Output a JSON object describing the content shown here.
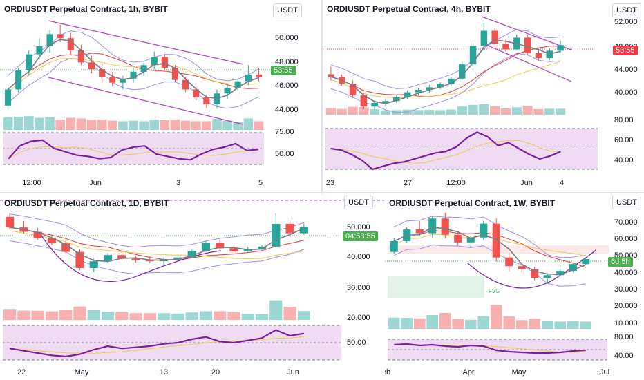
{
  "colors": {
    "up": "#26a69a",
    "down": "#ef5350",
    "ma": "#787b86",
    "bb": "#9c8df0",
    "rsi": "#7b1fa2",
    "rsiBand": "#e1bee7",
    "channel": "#b23fbf",
    "fib": "#f2c94c",
    "ema": "#e53935",
    "pricePos": "#4caf50",
    "priceNeg": "#f23645"
  },
  "charts": [
    {
      "id": "h1",
      "title": "ORDIUSDT Perpetual Contract, 1h, BYBIT",
      "unit": "USDT",
      "price_label": "53:55",
      "yticks": [
        "50.000",
        "48.000",
        "46.000",
        "44.000"
      ],
      "rsi_ticks": [
        "75.00",
        "50.00"
      ],
      "xticks": [
        "12:00",
        "Jun",
        "3",
        "5"
      ],
      "chart_data": {
        "type": "candlestick",
        "ylim": [
          43.0,
          51.5
        ],
        "candles": [
          [
            44.8,
            46.2,
            44.5,
            46.0
          ],
          [
            46.0,
            47.6,
            45.8,
            47.4
          ],
          [
            47.4,
            48.9,
            47.0,
            48.6
          ],
          [
            48.6,
            49.8,
            48.2,
            49.2
          ],
          [
            49.2,
            50.4,
            48.7,
            50.1
          ],
          [
            50.1,
            50.8,
            49.5,
            49.8
          ],
          [
            49.8,
            50.2,
            48.6,
            48.9
          ],
          [
            48.9,
            49.3,
            47.8,
            48.0
          ],
          [
            48.0,
            48.5,
            47.2,
            47.5
          ],
          [
            47.5,
            47.9,
            46.6,
            46.9
          ],
          [
            46.9,
            47.3,
            46.2,
            46.5
          ],
          [
            46.5,
            47.0,
            46.0,
            46.8
          ],
          [
            46.8,
            47.6,
            46.5,
            47.3
          ],
          [
            47.3,
            48.0,
            47.0,
            47.8
          ],
          [
            47.8,
            48.8,
            47.5,
            48.4
          ],
          [
            48.4,
            48.6,
            47.4,
            47.6
          ],
          [
            47.6,
            47.8,
            46.5,
            46.7
          ],
          [
            46.7,
            46.9,
            45.8,
            46.0
          ],
          [
            46.0,
            46.2,
            45.2,
            45.4
          ],
          [
            45.4,
            45.6,
            44.6,
            44.9
          ],
          [
            44.9,
            46.0,
            44.6,
            45.7
          ],
          [
            45.7,
            46.4,
            45.3,
            46.1
          ],
          [
            46.1,
            46.8,
            45.9,
            46.6
          ],
          [
            46.6,
            47.8,
            46.3,
            47.1
          ],
          [
            47.1,
            47.6,
            46.6,
            46.9
          ]
        ],
        "rsi": [
          40,
          62,
          70,
          72,
          58,
          52,
          46,
          44,
          40,
          42,
          55,
          60,
          62,
          48,
          44,
          40,
          38,
          48,
          56,
          60,
          66,
          54,
          56
        ],
        "rsi_ylim": [
          30,
          85
        ]
      }
    },
    {
      "id": "h4",
      "title": "ORDIUSDT Perpetual Contract, 4h, BYBIT",
      "unit": "USDT",
      "price_label": "53:55",
      "yticks": [
        "52.000",
        "48.000",
        "44.000",
        "40.000"
      ],
      "rsi_ticks": [
        "80.00",
        "60.00",
        "40.00"
      ],
      "xticks": [
        "23",
        "27",
        "12:00",
        "Jun",
        "4"
      ],
      "chart_data": {
        "type": "candlestick",
        "ylim": [
          37.5,
          53.5
        ],
        "candles": [
          [
            44.0,
            45.2,
            43.0,
            43.6
          ],
          [
            43.6,
            44.0,
            42.2,
            42.5
          ],
          [
            42.5,
            43.0,
            40.2,
            40.6
          ],
          [
            40.6,
            41.0,
            38.4,
            38.8
          ],
          [
            38.8,
            39.8,
            38.2,
            39.4
          ],
          [
            39.4,
            40.0,
            38.9,
            39.7
          ],
          [
            39.7,
            40.6,
            39.4,
            40.3
          ],
          [
            40.3,
            41.4,
            40.0,
            41.1
          ],
          [
            41.1,
            41.8,
            40.6,
            41.5
          ],
          [
            41.5,
            42.3,
            41.0,
            41.9
          ],
          [
            41.9,
            42.8,
            41.6,
            42.4
          ],
          [
            42.4,
            43.6,
            42.1,
            43.3
          ],
          [
            43.3,
            46.0,
            43.0,
            45.6
          ],
          [
            45.6,
            49.0,
            45.2,
            48.6
          ],
          [
            48.6,
            52.3,
            48.2,
            51.0
          ],
          [
            51.0,
            51.5,
            48.4,
            48.9
          ],
          [
            48.9,
            49.6,
            47.6,
            48.0
          ],
          [
            48.0,
            50.4,
            47.8,
            49.9
          ],
          [
            49.9,
            50.3,
            47.0,
            47.4
          ],
          [
            47.4,
            47.9,
            46.2,
            46.6
          ],
          [
            46.6,
            48.2,
            46.3,
            47.8
          ],
          [
            47.8,
            49.4,
            47.5,
            48.7
          ]
        ],
        "rsi": [
          58,
          56,
          50,
          42,
          30,
          34,
          38,
          40,
          44,
          48,
          52,
          54,
          60,
          72,
          80,
          74,
          62,
          66,
          58,
          50,
          44,
          48,
          54
        ],
        "rsi_ylim": [
          30,
          85
        ]
      }
    },
    {
      "id": "d1",
      "title": "ORDIUSDT Perpetual Contract, 1D, BYBIT",
      "unit": "USDT",
      "price_label": "04:53:55",
      "yticks": [
        "50.000",
        "40.000",
        "30.000",
        "20.000"
      ],
      "rsi_ticks": [
        "50.00"
      ],
      "xticks": [
        "22",
        "May",
        "13",
        "20",
        "Jun"
      ],
      "chart_data": {
        "type": "candlestick",
        "ylim": [
          17,
          55
        ],
        "candles": [
          [
            52.0,
            53.2,
            47.8,
            48.4
          ],
          [
            48.4,
            50.6,
            46.4,
            46.9
          ],
          [
            46.9,
            48.3,
            44.2,
            44.8
          ],
          [
            44.8,
            46.0,
            42.3,
            43.0
          ],
          [
            43.0,
            44.4,
            39.6,
            40.1
          ],
          [
            40.1,
            41.0,
            33.8,
            34.6
          ],
          [
            34.6,
            37.8,
            33.2,
            36.9
          ],
          [
            36.9,
            39.6,
            36.2,
            39.0
          ],
          [
            39.0,
            40.2,
            37.2,
            37.8
          ],
          [
            37.8,
            38.8,
            36.4,
            37.3
          ],
          [
            37.3,
            38.6,
            36.2,
            36.9
          ],
          [
            36.9,
            38.2,
            35.8,
            37.6
          ],
          [
            37.6,
            38.9,
            36.9,
            38.2
          ],
          [
            38.2,
            40.8,
            37.9,
            40.4
          ],
          [
            40.4,
            43.8,
            40.0,
            43.1
          ],
          [
            43.1,
            44.4,
            40.6,
            41.3
          ],
          [
            41.3,
            42.6,
            39.6,
            40.2
          ],
          [
            40.2,
            41.8,
            39.9,
            41.1
          ],
          [
            41.1,
            42.4,
            40.7,
            41.9
          ],
          [
            41.9,
            53.2,
            41.5,
            49.6
          ],
          [
            49.6,
            51.8,
            44.8,
            46.4
          ],
          [
            46.4,
            49.8,
            45.9,
            48.6
          ]
        ],
        "rsi": [
          40,
          36,
          32,
          28,
          26,
          30,
          38,
          44,
          40,
          42,
          44,
          48,
          50,
          56,
          60,
          52,
          50,
          54,
          58,
          72,
          62,
          66
        ],
        "rsi_ylim": [
          20,
          80
        ]
      }
    },
    {
      "id": "w1",
      "title": "ORDIUSDT Perpetual Contract, 1W, BYBIT",
      "unit": "USDT",
      "price_label": "6d 5h",
      "yticks": [
        "70.000",
        "60.000",
        "50.000",
        "40.000",
        "30.000",
        "20.000",
        "10.000"
      ],
      "rsi_ticks": [
        "80.00",
        "40.00"
      ],
      "xticks": [
        "eb",
        "Apr",
        "May",
        "Jul"
      ],
      "fvg_label": "FVG",
      "chart_data": {
        "type": "candlestick",
        "ylim": [
          5,
          78
        ],
        "candles": [
          [
            52.0,
            60.8,
            51.0,
            58.6
          ],
          [
            58.6,
            67.0,
            57.5,
            65.8
          ],
          [
            65.8,
            70.8,
            62.0,
            63.4
          ],
          [
            63.4,
            74.0,
            60.8,
            72.4
          ],
          [
            72.4,
            76.0,
            60.2,
            62.5
          ],
          [
            62.5,
            64.0,
            56.0,
            57.8
          ],
          [
            57.8,
            62.0,
            55.0,
            60.8
          ],
          [
            60.8,
            71.0,
            59.5,
            69.3
          ],
          [
            69.3,
            72.5,
            46.0,
            48.6
          ],
          [
            48.6,
            51.5,
            40.2,
            43.3
          ],
          [
            43.3,
            45.8,
            39.2,
            41.5
          ],
          [
            41.5,
            43.0,
            34.5,
            36.2
          ],
          [
            36.2,
            39.0,
            33.0,
            37.8
          ],
          [
            37.8,
            41.5,
            36.9,
            40.4
          ],
          [
            40.4,
            45.0,
            39.5,
            44.6
          ],
          [
            44.6,
            48.6,
            44.0,
            47.6
          ]
        ],
        "rsi": [
          74,
          76,
          72,
          74,
          70,
          68,
          72,
          70,
          58,
          54,
          52,
          50,
          50,
          52,
          56,
          58
        ],
        "rsi_ylim": [
          30,
          90
        ]
      }
    }
  ]
}
